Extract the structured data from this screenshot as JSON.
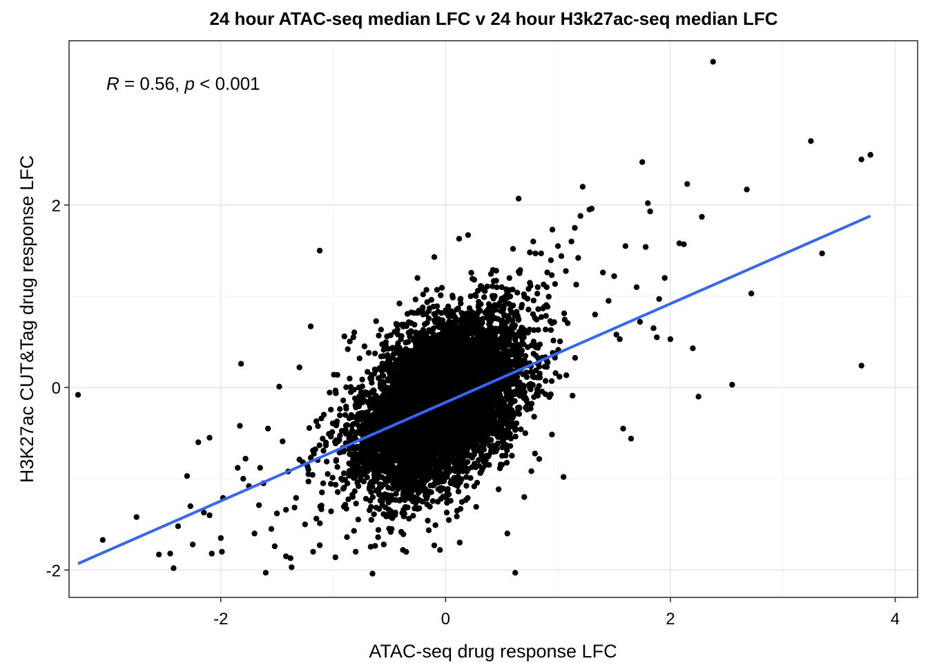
{
  "chart_data": {
    "type": "scatter",
    "title": "24 hour ATAC-seq median LFC v 24 hour H3k27ac-seq median LFC",
    "xlabel": "ATAC-seq drug response LFC",
    "ylabel": "H3K27ac CUT&Tag drug response LFC",
    "xlim": [
      -3.35,
      4.2
    ],
    "ylim": [
      -2.3,
      3.8
    ],
    "x_ticks": [
      -2,
      0,
      2,
      4
    ],
    "y_ticks": [
      -2,
      0,
      2
    ],
    "x_tick_labels": [
      "-2",
      "0",
      "2",
      "4"
    ],
    "y_tick_labels": [
      "-2",
      "0",
      "2"
    ],
    "grid": true,
    "annotation": {
      "r_symbol": "R",
      "r_value": " = 0.56, ",
      "p_symbol": "p",
      "p_value": " < 0.001"
    },
    "regression_line": {
      "x": [
        -3.27,
        3.78
      ],
      "y": [
        -1.93,
        1.88
      ],
      "color": "#3366FF"
    },
    "point_color": "#000000",
    "dense_cloud": {
      "n_points": 7000,
      "seed": 20240511,
      "x_mean": -0.05,
      "x_sd": 0.36,
      "y_sd": 0.42,
      "slope": 0.55,
      "intercept": -0.14
    },
    "outlier_points": [
      [
        -3.27,
        -0.08
      ],
      [
        -3.05,
        -1.67
      ],
      [
        -2.75,
        -1.42
      ],
      [
        -2.55,
        -1.83
      ],
      [
        -2.45,
        -1.82
      ],
      [
        -2.42,
        -1.98
      ],
      [
        -2.38,
        -1.52
      ],
      [
        -2.3,
        -0.97
      ],
      [
        -2.27,
        -1.3
      ],
      [
        -2.25,
        -1.72
      ],
      [
        -2.15,
        -1.37
      ],
      [
        -2.2,
        -0.6
      ],
      [
        -2.1,
        -1.4
      ],
      [
        -2.08,
        -1.82
      ],
      [
        -2.1,
        -0.55
      ],
      [
        -2.0,
        -1.65
      ],
      [
        -1.99,
        -1.8
      ],
      [
        -1.98,
        -1.21
      ],
      [
        -1.85,
        -0.88
      ],
      [
        -1.83,
        -0.42
      ],
      [
        -1.8,
        -1.0
      ],
      [
        -1.75,
        -1.08
      ],
      [
        -1.78,
        -0.78
      ],
      [
        -1.7,
        -1.6
      ],
      [
        -1.66,
        -1.29
      ],
      [
        -1.65,
        -0.88
      ],
      [
        -1.82,
        0.26
      ],
      [
        -1.62,
        -1.05
      ],
      [
        -1.6,
        -2.03
      ],
      [
        -1.58,
        -0.45
      ],
      [
        -1.55,
        -1.55
      ],
      [
        -1.52,
        -1.74
      ],
      [
        -1.5,
        -1.38
      ],
      [
        -1.48,
        0.01
      ],
      [
        -1.45,
        -0.59
      ],
      [
        -1.42,
        -1.85
      ],
      [
        -1.42,
        -1.34
      ],
      [
        -1.4,
        -0.92
      ],
      [
        -1.38,
        -1.87
      ],
      [
        -1.37,
        -1.97
      ],
      [
        -1.33,
        -1.21
      ],
      [
        -1.3,
        -0.79
      ],
      [
        -1.27,
        -0.82
      ],
      [
        -1.25,
        -1.5
      ],
      [
        -1.22,
        -0.95
      ],
      [
        -1.2,
        -0.77
      ],
      [
        -1.18,
        -0.69
      ],
      [
        -1.15,
        -0.37
      ],
      [
        -1.3,
        0.22
      ],
      [
        -1.22,
        -1.03
      ],
      [
        -1.12,
        1.5
      ],
      [
        -1.2,
        0.67
      ],
      [
        -1.1,
        -1.15
      ],
      [
        -0.98,
        -1.86
      ],
      [
        -0.9,
        0.56
      ],
      [
        -0.87,
        0.42
      ],
      [
        -0.82,
        0.55
      ],
      [
        -0.8,
        -1.8
      ],
      [
        -0.65,
        -2.04
      ],
      [
        -0.6,
        -1.64
      ],
      [
        -0.55,
        -1.72
      ],
      [
        -0.48,
        -1.55
      ],
      [
        -0.38,
        -1.78
      ],
      [
        -0.1,
        -1.73
      ],
      [
        -0.05,
        -1.78
      ],
      [
        -0.2,
        1.02
      ],
      [
        -0.25,
        1.2
      ],
      [
        -0.17,
        1.07
      ],
      [
        -0.1,
        1.43
      ],
      [
        0.12,
        1.63
      ],
      [
        0.2,
        1.67
      ],
      [
        0.45,
        1.28
      ],
      [
        0.45,
        1.17
      ],
      [
        0.5,
        1.1
      ],
      [
        0.55,
        -1.6
      ],
      [
        0.6,
        1.52
      ],
      [
        0.62,
        -2.03
      ],
      [
        0.65,
        1.27
      ],
      [
        0.65,
        2.07
      ],
      [
        0.7,
        -1.2
      ],
      [
        0.75,
        1.48
      ],
      [
        0.78,
        1.6
      ],
      [
        0.8,
        1.47
      ],
      [
        0.82,
        1.1
      ],
      [
        0.85,
        1.47
      ],
      [
        0.9,
        1.1
      ],
      [
        0.95,
        1.73
      ],
      [
        1.0,
        1.55
      ],
      [
        1.03,
        1.44
      ],
      [
        1.05,
        -0.98
      ],
      [
        1.12,
        1.6
      ],
      [
        1.15,
        1.75
      ],
      [
        1.18,
        1.42
      ],
      [
        1.2,
        1.88
      ],
      [
        1.22,
        2.2
      ],
      [
        1.28,
        1.95
      ],
      [
        1.3,
        1.96
      ],
      [
        1.33,
        0.8
      ],
      [
        1.4,
        1.26
      ],
      [
        1.45,
        0.95
      ],
      [
        1.5,
        1.22
      ],
      [
        1.52,
        0.58
      ],
      [
        1.55,
        0.53
      ],
      [
        1.58,
        -0.45
      ],
      [
        1.6,
        1.55
      ],
      [
        1.65,
        -0.56
      ],
      [
        1.7,
        1.1
      ],
      [
        1.73,
        0.72
      ],
      [
        1.75,
        2.47
      ],
      [
        1.78,
        1.54
      ],
      [
        1.8,
        2.02
      ],
      [
        1.82,
        1.93
      ],
      [
        1.85,
        0.65
      ],
      [
        1.88,
        0.55
      ],
      [
        1.9,
        0.97
      ],
      [
        1.95,
        1.2
      ],
      [
        2.0,
        0.53
      ],
      [
        2.08,
        1.58
      ],
      [
        2.12,
        1.57
      ],
      [
        2.15,
        2.23
      ],
      [
        2.2,
        0.43
      ],
      [
        2.25,
        -0.1
      ],
      [
        2.28,
        1.87
      ],
      [
        2.38,
        3.57
      ],
      [
        2.55,
        0.03
      ],
      [
        2.68,
        2.17
      ],
      [
        2.72,
        1.03
      ],
      [
        3.25,
        2.7
      ],
      [
        3.35,
        1.47
      ],
      [
        3.7,
        0.24
      ],
      [
        3.7,
        2.5
      ],
      [
        3.78,
        2.55
      ]
    ]
  }
}
